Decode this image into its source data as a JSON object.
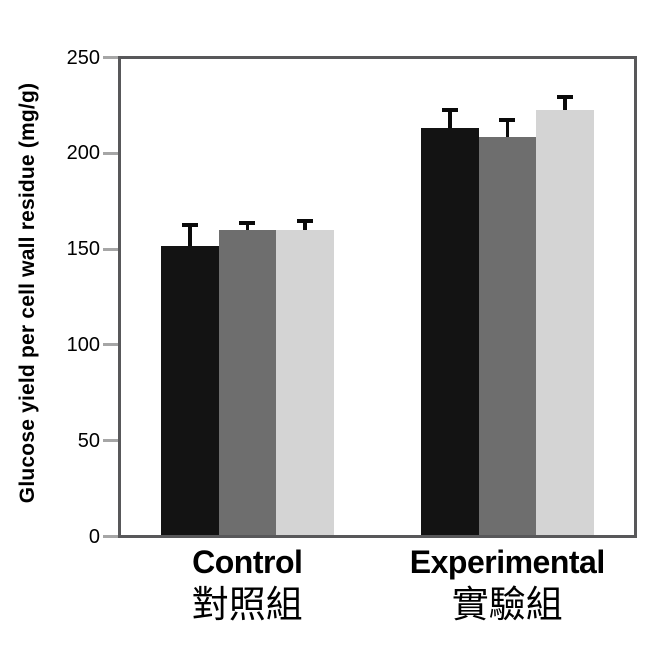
{
  "chart_data": {
    "type": "bar",
    "title": "",
    "ylabel": "Glucose yield per cell wall residue (mg/g)",
    "xlabel": "",
    "ylim": [
      0,
      250
    ],
    "yticks": [
      0,
      50,
      100,
      150,
      200,
      250
    ],
    "grid": false,
    "legend": "none",
    "error_bars": "upper-only",
    "categories_en": [
      "Control",
      "Experimental"
    ],
    "categories_zh": [
      "對照組",
      "實驗組"
    ],
    "series": [
      {
        "name": "black",
        "color": "#131313",
        "values": [
          152,
          214
        ],
        "errors_plus": [
          10,
          8
        ]
      },
      {
        "name": "dark-gray",
        "color": "#6e6e6e",
        "values": [
          160,
          209
        ],
        "errors_plus": [
          3,
          8
        ]
      },
      {
        "name": "light-gray",
        "color": "#d4d4d4",
        "values": [
          160,
          223
        ],
        "errors_plus": [
          4,
          6
        ]
      }
    ],
    "colors": {
      "frame": "#58585a",
      "tick_mark": "#a6a6a6",
      "text": "#000000",
      "error_bar": "#0a0a0a",
      "background": "#ffffff"
    }
  }
}
